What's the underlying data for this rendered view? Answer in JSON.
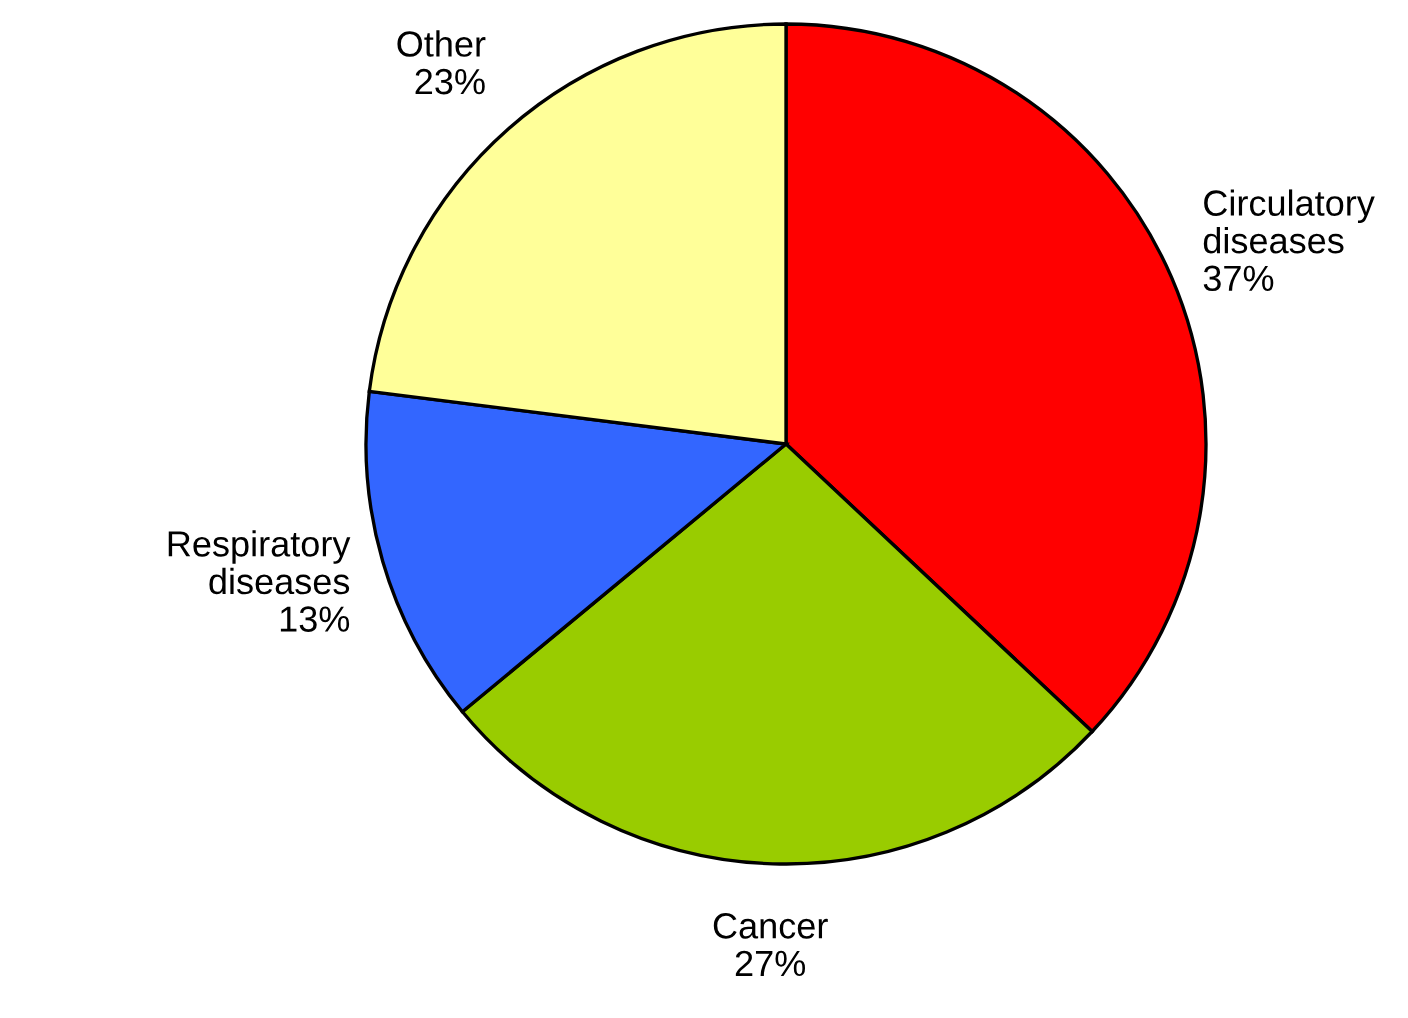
{
  "chart_data": {
    "type": "pie",
    "categories": [
      "Circulatory diseases",
      "Cancer",
      "Respiratory diseases",
      "Other"
    ],
    "values": [
      37,
      27,
      13,
      23
    ],
    "colors": [
      "#ff0000",
      "#99cc00",
      "#3366ff",
      "#ffff99"
    ],
    "value_labels": [
      "37%",
      "27%",
      "13%",
      "23%"
    ]
  }
}
